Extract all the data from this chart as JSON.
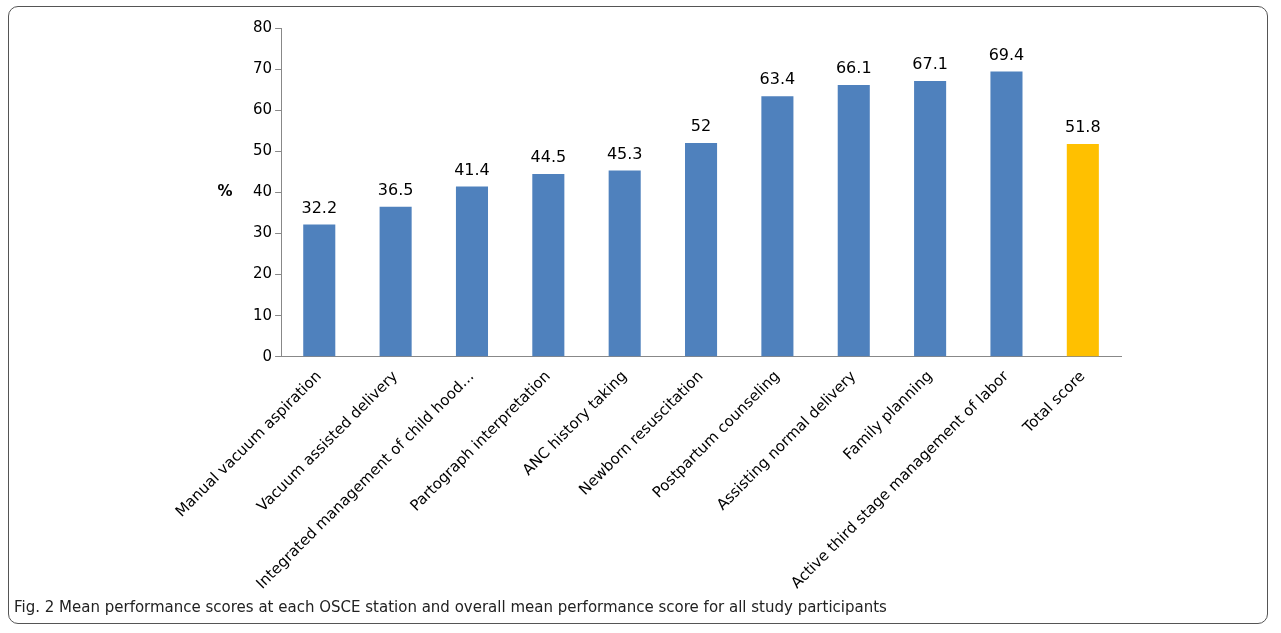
{
  "chart_data": {
    "type": "bar",
    "categories": [
      "Manual vacuum aspiration",
      "Vacuum assisted delivery",
      "Integrated management of child hood…",
      "Partograph interpretation",
      "ANC history taking",
      "Newborn resuscitation",
      "Postpartum counseling",
      "Assisting normal delivery",
      "Family planning",
      "Active third stage management of labor",
      "Total score"
    ],
    "values": [
      32.2,
      36.5,
      41.4,
      44.5,
      45.3,
      52,
      63.4,
      66.1,
      67.1,
      69.4,
      51.8
    ],
    "colors": [
      "#4f81bd",
      "#4f81bd",
      "#4f81bd",
      "#4f81bd",
      "#4f81bd",
      "#4f81bd",
      "#4f81bd",
      "#4f81bd",
      "#4f81bd",
      "#4f81bd",
      "#ffc000"
    ],
    "ylabel": "%",
    "ylim": [
      0,
      80
    ],
    "yticks": [
      0,
      10,
      20,
      30,
      40,
      50,
      60,
      70,
      80
    ],
    "data_labels": true,
    "annotations": [
      "Fig. 2 Mean performance scores at each OSCE station and overall mean performance score for all study participants"
    ]
  }
}
